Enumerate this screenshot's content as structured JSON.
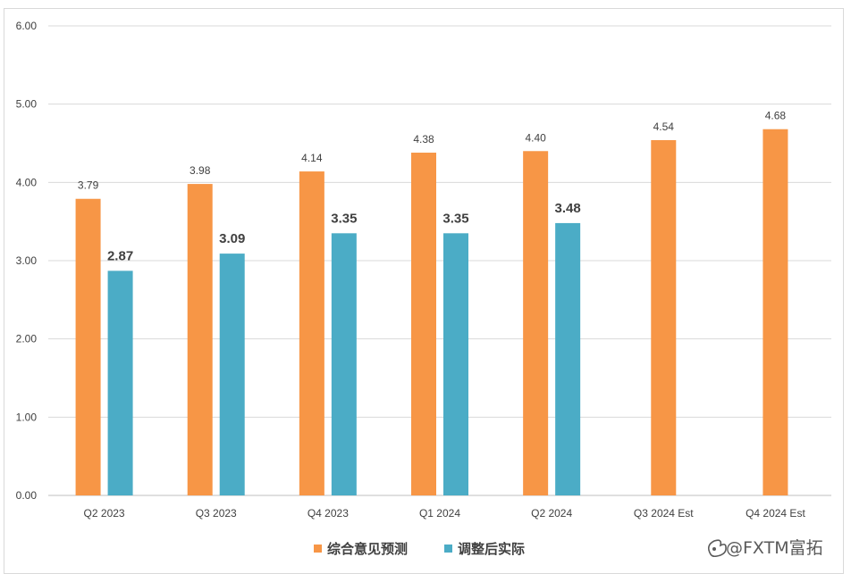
{
  "chart_data": {
    "type": "bar",
    "categories": [
      "Q2 2023",
      "Q3 2023",
      "Q4 2023",
      "Q1 2024",
      "Q2 2024",
      "Q3 2024 Est",
      "Q4 2024 Est"
    ],
    "series": [
      {
        "name": "综合意见预测",
        "color": "#f79646",
        "values": [
          3.79,
          3.98,
          4.14,
          4.38,
          4.4,
          4.54,
          4.68
        ],
        "labels": [
          "3.79",
          "3.98",
          "4.14",
          "4.38",
          "4.40",
          "4.54",
          "4.68"
        ]
      },
      {
        "name": "调整后实际",
        "color": "#4bacc6",
        "values": [
          2.87,
          3.09,
          3.35,
          3.35,
          3.48,
          null,
          null
        ],
        "labels": [
          "2.87",
          "3.09",
          "3.35",
          "3.35",
          "3.48",
          "",
          ""
        ]
      }
    ],
    "yticks": [
      "0.00",
      "1.00",
      "2.00",
      "3.00",
      "4.00",
      "5.00",
      "6.00"
    ],
    "ylim": [
      0,
      6
    ],
    "grid": true,
    "legend": "bottom-center"
  },
  "watermark": {
    "text": "@FXTM富拓",
    "icon": "weibo-logo-icon"
  }
}
